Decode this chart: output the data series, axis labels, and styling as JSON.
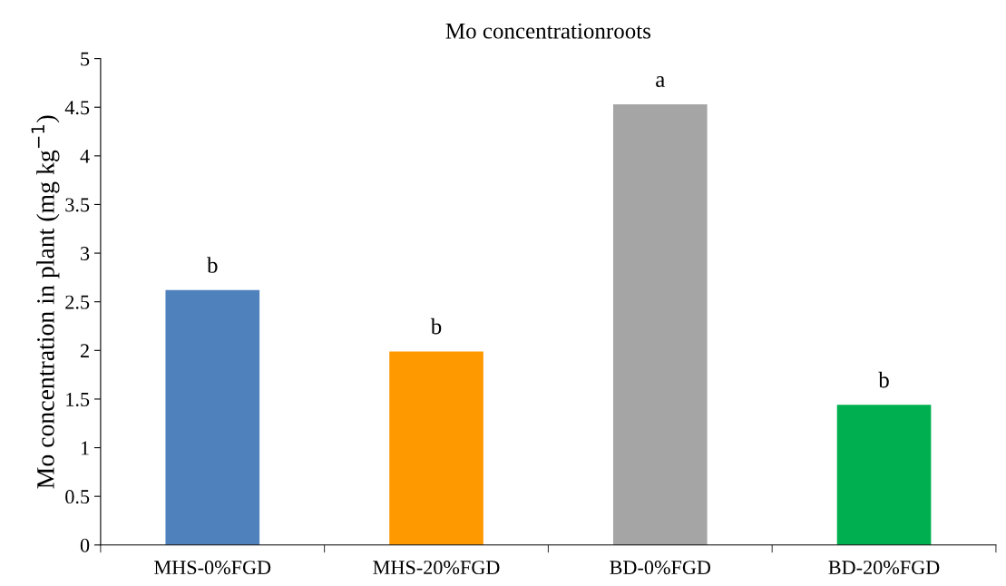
{
  "chart_data": {
    "type": "bar",
    "title": "Mo concentrationroots",
    "ylabel": "Mo concentration in plant (mg kg$^{−1}$)",
    "categories": [
      "MHS-0%FGD",
      "MHS-20%FGD",
      "BD-0%FGD",
      "BD-20%FGD"
    ],
    "values": [
      2.62,
      1.99,
      4.53,
      1.44
    ],
    "colors": [
      "#4f81bd",
      "#ff9900",
      "#a5a5a5",
      "#00b050"
    ],
    "ylim": [
      0,
      5
    ],
    "yticks": [
      0,
      0.5,
      1,
      1.5,
      2,
      2.5,
      3,
      3.5,
      4,
      4.5,
      5
    ],
    "grid": false,
    "annotations": [
      {
        "text": "b",
        "x": "MHS-0%FGD",
        "y": 2.62
      },
      {
        "text": "b",
        "x": "MHS-20%FGD",
        "y": 1.99
      },
      {
        "text": "a",
        "x": "BD-0%FGD",
        "y": 4.53
      },
      {
        "text": "b",
        "x": "BD-20%FGD",
        "y": 1.44
      }
    ]
  }
}
